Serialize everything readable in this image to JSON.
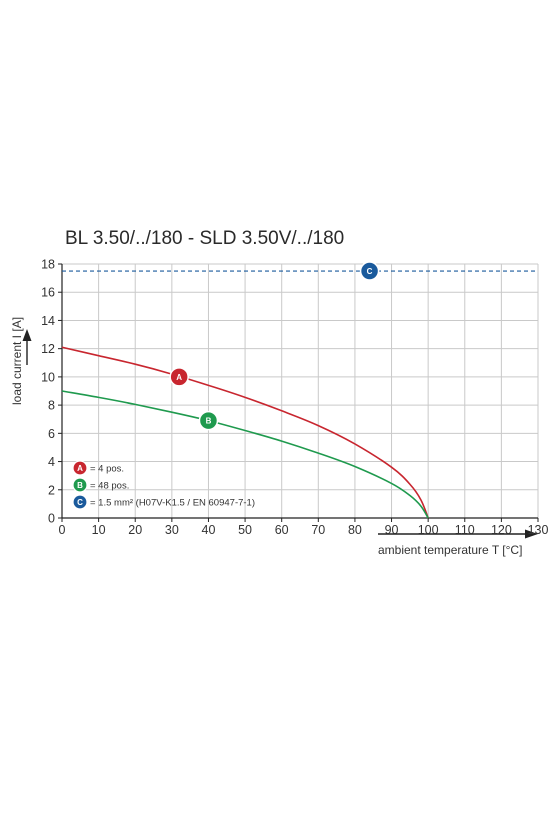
{
  "chart_data": {
    "type": "line",
    "title": "BL 3.50/../180 - SLD 3.50V/../180",
    "xlabel": "ambient temperature T [°C]",
    "ylabel": "load current I [A]",
    "xlim": [
      0,
      130
    ],
    "ylim": [
      0,
      18
    ],
    "xticks": [
      "0",
      "10",
      "20",
      "30",
      "40",
      "50",
      "60",
      "70",
      "80",
      "90",
      "100",
      "110",
      "120",
      "130"
    ],
    "yticks": [
      "0",
      "2",
      "4",
      "6",
      "8",
      "10",
      "12",
      "14",
      "16",
      "18"
    ],
    "grid": true,
    "legend_position": "bottom-left",
    "series": [
      {
        "marker": "A",
        "legend": "= 4 pos.",
        "color": "#c8262f",
        "x": [
          0,
          10,
          20,
          30,
          40,
          50,
          60,
          70,
          80,
          90,
          95,
          98,
          100
        ],
        "y": [
          12.1,
          11.5,
          10.9,
          10.2,
          9.4,
          8.55,
          7.6,
          6.55,
          5.25,
          3.6,
          2.4,
          1.3,
          0
        ],
        "marker_at": [
          32,
          10
        ]
      },
      {
        "marker": "B",
        "legend": "= 48 pos.",
        "color": "#1f9a4e",
        "x": [
          0,
          10,
          20,
          30,
          40,
          50,
          60,
          70,
          80,
          90,
          95,
          98,
          100
        ],
        "y": [
          9.0,
          8.55,
          8.05,
          7.5,
          6.9,
          6.2,
          5.45,
          4.6,
          3.65,
          2.45,
          1.6,
          0.85,
          0
        ],
        "marker_at": [
          40,
          6.9
        ]
      },
      {
        "marker": "C",
        "legend": "= 1.5 mm² (H07V-K1.5 / EN 60947-7-1)",
        "color": "#1a5a9c",
        "style": "dashed",
        "x": [
          0,
          130
        ],
        "y": [
          17.5,
          17.5
        ],
        "marker_at": [
          84,
          17.5
        ]
      }
    ]
  }
}
